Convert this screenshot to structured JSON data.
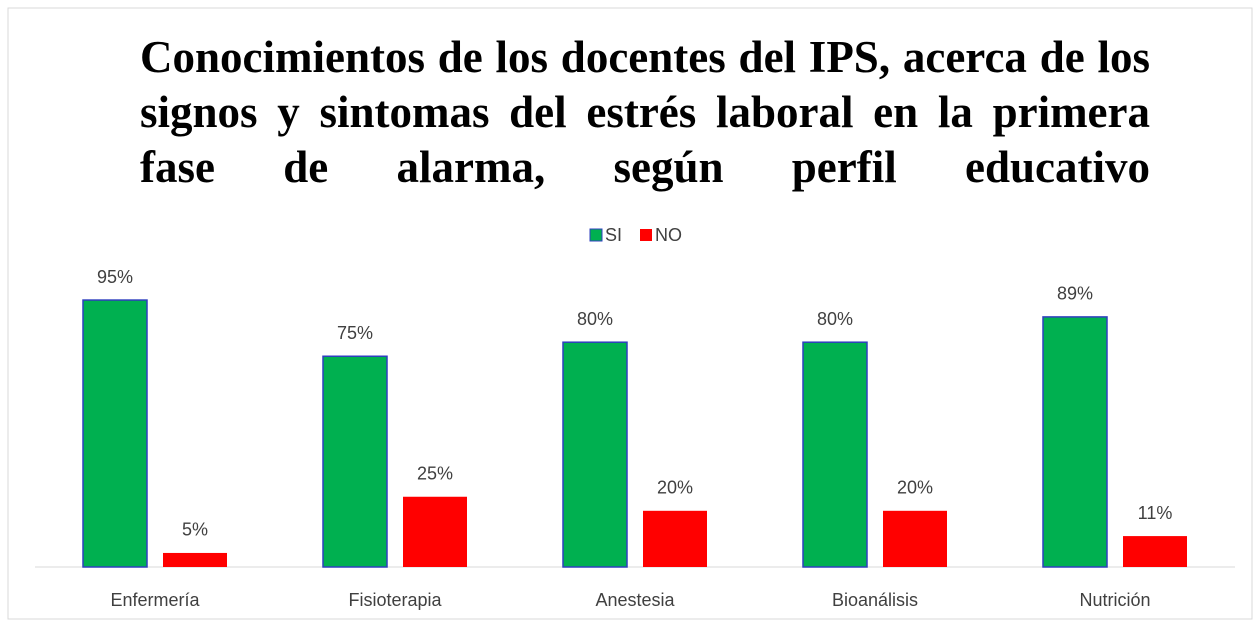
{
  "chart_data": {
    "type": "bar",
    "title": "Conocimientos de los docentes del IPS, acerca de los  signos y sintomas del estrés laboral en la primera fase de alarma, según perfil educativo",
    "categories": [
      "Enfermería",
      "Fisioterapia",
      "Anestesia",
      "Bioanálisis",
      "Nutrición"
    ],
    "series": [
      {
        "name": "SI",
        "color": "#00b050",
        "values": [
          95,
          75,
          80,
          80,
          89
        ],
        "value_labels": [
          "95%",
          "75%",
          "80%",
          "80%",
          "89%"
        ]
      },
      {
        "name": "NO",
        "color": "#ff0000",
        "values": [
          5,
          25,
          20,
          20,
          11
        ],
        "value_labels": [
          "5%",
          "25%",
          "20%",
          "20%",
          "11%"
        ]
      }
    ],
    "ylim": [
      0,
      100
    ],
    "legend": "top"
  }
}
